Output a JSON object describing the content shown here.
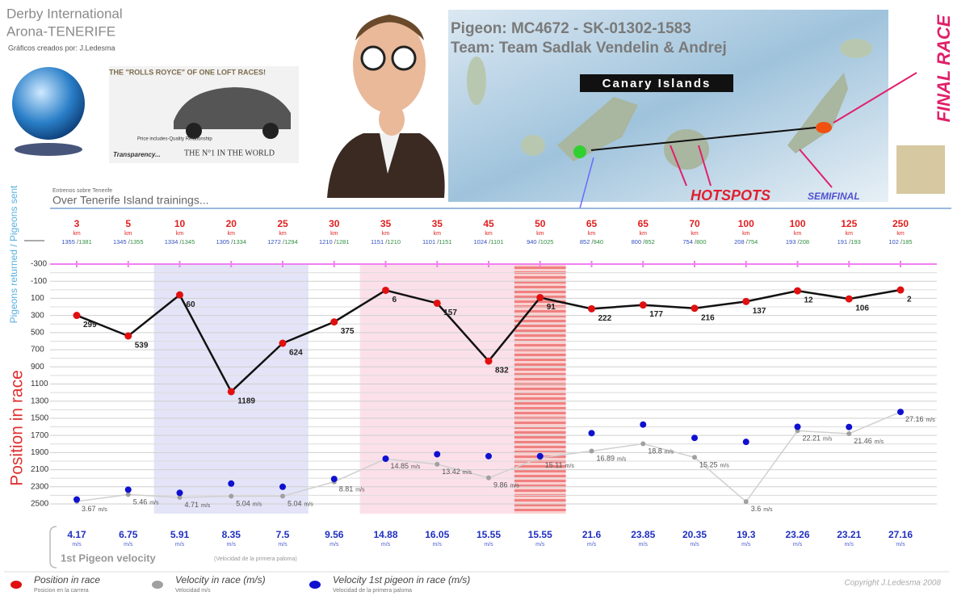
{
  "header": {
    "line1": "Derby International",
    "line2": "Arona-TENERIFE",
    "credit": "Gráficos creados por: J.Ledesma",
    "ad_title": "THE \"ROLLS ROYCE\" OF ONE LOFT RACES!",
    "ad_small": "Price includes-Quality Relationship",
    "ad_transparency": "Transparency...",
    "ad_world": "THE N°1 IN THE WORLD",
    "pigeon": "Pigeon: MC4672 - SK-01302-1583",
    "team": "Team: Team Sadlak Vendelin & Andrej",
    "map_title": "Canary Islands",
    "final_race": "FINAL RACE",
    "hotspots": "HOTSPOTS",
    "semifinal": "SEMIFINAL",
    "trainings_small": "Entrenos sobre Tenerife",
    "trainings": "Over Tenerife Island trainings..."
  },
  "chart_data": {
    "type": "line",
    "y_axis_top_label": "Pigeons returned / Pigeons sent",
    "y_axis_label": "Position in race",
    "categories": [
      3,
      5,
      10,
      20,
      25,
      30,
      35,
      35,
      45,
      50,
      65,
      65,
      70,
      100,
      100,
      125,
      250
    ],
    "category_unit": "km",
    "returned": [
      1355,
      1345,
      1334,
      1305,
      1272,
      1210,
      1151,
      1101,
      1024,
      940,
      852,
      800,
      754,
      208,
      193,
      191,
      102
    ],
    "sent": [
      1381,
      1355,
      1345,
      1334,
      1294,
      1281,
      1210,
      1151,
      1101,
      1025,
      940,
      852,
      800,
      754,
      208,
      193,
      185
    ],
    "value_unit": "m/s",
    "series": [
      {
        "name": "Position in race",
        "subname": "Posicion en la carrera",
        "color": "#e01010",
        "values": [
          299,
          539,
          60,
          1189,
          624,
          375,
          6,
          157,
          832,
          91,
          222,
          177,
          216,
          137,
          12,
          106,
          2
        ]
      },
      {
        "name": "Velocity in race (m/s)",
        "subname": "Velocidad m/s",
        "color": "#a0a0a0",
        "axis": "y2",
        "values": [
          3.67,
          5.46,
          4.71,
          5.04,
          5.04,
          8.81,
          14.85,
          13.42,
          9.86,
          15.11,
          16.89,
          18.8,
          15.25,
          3.6,
          22.21,
          21.46,
          27.16
        ]
      },
      {
        "name": "Velocity 1st pigeon in race (m/s)",
        "subname": "Velocidad de la primera paloma",
        "color": "#1010d0",
        "axis": "y2",
        "values": [
          4.17,
          6.75,
          5.91,
          8.35,
          7.5,
          9.56,
          14.88,
          16.05,
          15.55,
          15.55,
          21.6,
          23.85,
          20.35,
          19.3,
          23.26,
          23.21,
          27.16
        ]
      }
    ],
    "ylim": [
      -300,
      2500
    ],
    "y_inverted": true,
    "yticks": [
      -300,
      -100,
      100,
      300,
      500,
      700,
      900,
      1100,
      1300,
      1500,
      1700,
      1900,
      2100,
      2300,
      2500
    ],
    "y2lim": [
      3,
      66
    ],
    "bottom_title": "1st Pigeon velocity",
    "bottom_subtitle": "(Velocidad de la primera paloma)",
    "copyright": "Copyright J.Ledesma 2008"
  }
}
